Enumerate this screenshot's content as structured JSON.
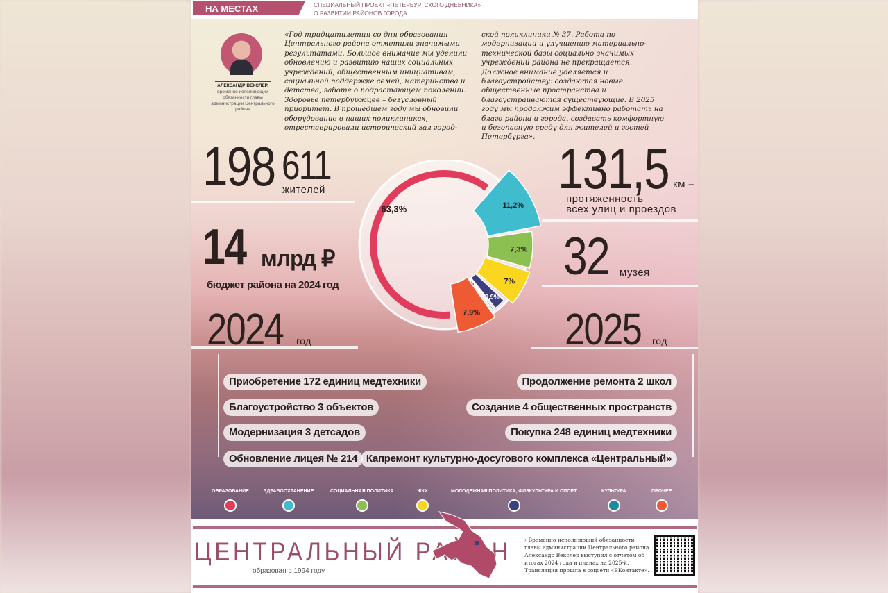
{
  "header": {
    "section": "НА МЕСТАХ",
    "subtitle_line1": "СПЕЦИАЛЬНЫЙ ПРОЕКТ «ПЕТЕРБУРГСКОГО ДНЕВНИКА»",
    "subtitle_line2": "О РАЗВИТИИ РАЙОНОВ ГОРОДА"
  },
  "person": {
    "name": "АЛЕКСАНДР ВЕКСЛЕР,",
    "role": "временно исполняющий обязанности главы администрации Центрального района"
  },
  "quote": {
    "col1": "«Год тридцатилетия со дня образования Центрального района отметили значимыми результатами. Большое внимание мы уделили обновлению и развитию наших социальных учреждений, общественным инициативам, социальной поддержке семей, материнства и детства, заботе о подрастающем поколении. Здоровье петербуржцев – безусловный приоритет. В прошедшем году мы обновили оборудование в наших поликлиниках, отреставрировали исторический зал город-",
    "col2": "ской поликлиники № 37. Работа по модернизации и улучшению материально-технической базы социально значимых учреждений района не прекращается. Должное внимание уделяется и благоустройству: создаются новые общественные пространства и благоустраиваются существующие. В 2025 году мы продолжим эффективно работать на благо района и города, создавать комфортную и безопасную среду для жителей и гостей Петербурга»."
  },
  "stats": {
    "population_big": "198",
    "population_small": "611",
    "population_label": "жителей",
    "budget_value": "14",
    "budget_unit": "млрд ₽",
    "budget_label": "бюджет района на 2024 год",
    "year_left": "2024",
    "year_left_label": "год",
    "roads_value": "131,5",
    "roads_unit": "км –",
    "roads_label1": "протяженность",
    "roads_label2": "всех улиц и проездов",
    "museums_value": "32",
    "museums_label": "музея",
    "year_right": "2025",
    "year_right_label": "год"
  },
  "achievements_2024": [
    "Приобретение 172 единиц медтехники",
    "Благоустройство 3 объектов",
    "Модернизация 3 детсадов",
    "Обновление лицея № 214"
  ],
  "plans_2025": [
    "Продолжение ремонта 2 школ",
    "Создание 4 общественных пространств",
    "Покупка 248 единиц медтехники",
    "Капремонт культурно-досугового комплекса «Центральный»"
  ],
  "chart_data": {
    "type": "pie",
    "style": "donut, exploded segments",
    "slices": [
      {
        "category": "ОБРАЗОВАНИЕ",
        "value": 63.3,
        "label": "63,3%",
        "color": "#e23c5c"
      },
      {
        "category": "ЗДРАВООХРАНЕНИЕ",
        "value": 11.2,
        "label": "11,2%",
        "color": "#3fbccd"
      },
      {
        "category": "СОЦИАЛЬНАЯ ПОЛИТИКА",
        "value": 7.3,
        "label": "7,3%",
        "color": "#8cc152"
      },
      {
        "category": "ЖКХ",
        "value": 7,
        "label": "7%",
        "color": "#fad61e"
      },
      {
        "category": "МОЛОДЕЖНАЯ ПОЛИТИКА, ФИЗКУЛЬТУРА И СПОРТ",
        "value": 2.9,
        "label": "2,9%",
        "color": "#3b3f7e"
      },
      {
        "category": "КУЛЬТУРА",
        "value": 0.4,
        "label": "0,4%",
        "color": "#1e8aa0"
      },
      {
        "category": "ПРОЧЕЕ",
        "value": 7.9,
        "label": "7,9%",
        "color": "#ee5a34"
      }
    ],
    "legend_placement": "bottom"
  },
  "footer": {
    "district": "ЦЕНТРАЛЬНЫЙ РАЙОН",
    "founded": "образован в 1994 году",
    "note": "› Временно исполняющий обязанности главы администрации Центрального района Александр Векслер выступил с отчетом об итогах 2024 года и планах на 2025-й. Трансляция прошла в соцсети «ВКонтакте»."
  }
}
